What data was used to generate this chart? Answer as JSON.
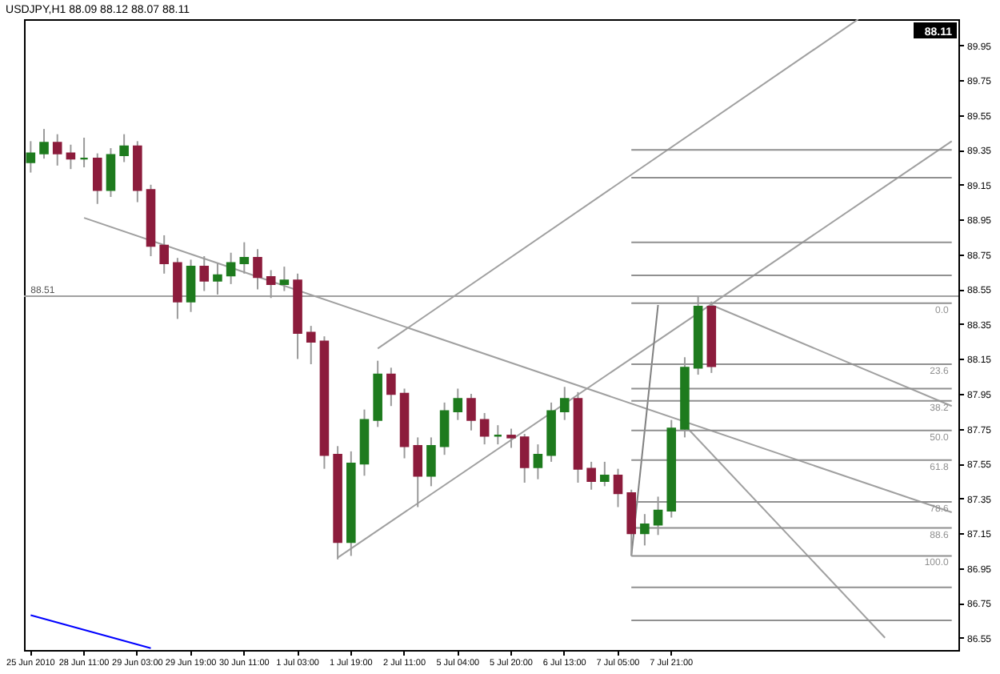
{
  "chart_data": {
    "type": "candlestick",
    "title": "USDJPY,H1  88.09 88.12 88.07 88.11",
    "categories": [
      "25 Jun 2010",
      null,
      null,
      null,
      "28 Jun 11:00",
      null,
      null,
      null,
      "29 Jun 03:00",
      null,
      null,
      null,
      "29 Jun 19:00",
      null,
      null,
      null,
      "30 Jun 11:00",
      null,
      null,
      null,
      "1 Jul 03:00",
      null,
      null,
      null,
      "1 Jul 19:00",
      null,
      null,
      null,
      "2 Jul 11:00",
      null,
      null,
      null,
      "5 Jul 04:00",
      null,
      null,
      null,
      "5 Jul 20:00",
      null,
      null,
      null,
      "6 Jul 13:00",
      null,
      null,
      null,
      "7 Jul 05:00",
      null,
      null,
      null,
      "7 Jul 21:00",
      null,
      null,
      null,
      null,
      null,
      null,
      null,
      null,
      null,
      null,
      null,
      null,
      null,
      null,
      null,
      null,
      null,
      null,
      null,
      null,
      null
    ],
    "ohlc": [
      [
        89.28,
        89.4,
        89.22,
        89.33
      ],
      [
        89.33,
        89.47,
        89.3,
        89.39
      ],
      [
        89.39,
        89.44,
        89.26,
        89.33
      ],
      [
        89.33,
        89.38,
        89.24,
        89.3
      ],
      [
        89.3,
        89.42,
        89.25,
        89.3
      ],
      [
        89.3,
        89.33,
        89.04,
        89.12
      ],
      [
        89.12,
        89.36,
        89.08,
        89.32
      ],
      [
        89.32,
        89.44,
        89.28,
        89.37
      ],
      [
        89.37,
        89.4,
        89.05,
        89.12
      ],
      [
        89.12,
        89.15,
        88.74,
        88.8
      ],
      [
        88.8,
        88.86,
        88.64,
        88.7
      ],
      [
        88.7,
        88.73,
        88.38,
        88.48
      ],
      [
        88.48,
        88.72,
        88.42,
        88.68
      ],
      [
        88.68,
        88.74,
        88.54,
        88.6
      ],
      [
        88.6,
        88.7,
        88.52,
        88.63
      ],
      [
        88.63,
        88.76,
        88.58,
        88.7
      ],
      [
        88.7,
        88.82,
        88.64,
        88.73
      ],
      [
        88.73,
        88.78,
        88.55,
        88.62
      ],
      [
        88.62,
        88.66,
        88.5,
        88.58
      ],
      [
        88.58,
        88.68,
        88.54,
        88.6
      ],
      [
        88.6,
        88.64,
        88.15,
        88.3
      ],
      [
        88.3,
        88.34,
        88.12,
        88.25
      ],
      [
        88.25,
        88.28,
        87.52,
        87.6
      ],
      [
        87.6,
        87.65,
        87.0,
        87.1
      ],
      [
        87.1,
        87.62,
        87.02,
        87.55
      ],
      [
        87.55,
        87.86,
        87.48,
        87.8
      ],
      [
        87.8,
        88.14,
        87.76,
        88.06
      ],
      [
        88.06,
        88.1,
        87.88,
        87.95
      ],
      [
        87.95,
        87.98,
        87.58,
        87.65
      ],
      [
        87.65,
        87.7,
        87.3,
        87.48
      ],
      [
        87.48,
        87.7,
        87.42,
        87.65
      ],
      [
        87.65,
        87.9,
        87.6,
        87.85
      ],
      [
        87.85,
        87.98,
        87.8,
        87.92
      ],
      [
        87.92,
        87.95,
        87.74,
        87.8
      ],
      [
        87.8,
        87.84,
        87.66,
        87.71
      ],
      [
        87.71,
        87.77,
        87.66,
        87.71
      ],
      [
        87.71,
        87.75,
        87.64,
        87.7
      ],
      [
        87.7,
        87.72,
        87.44,
        87.53
      ],
      [
        87.53,
        87.66,
        87.46,
        87.6
      ],
      [
        87.6,
        87.9,
        87.56,
        87.85
      ],
      [
        87.85,
        87.99,
        87.8,
        87.92
      ],
      [
        87.92,
        87.96,
        87.44,
        87.52
      ],
      [
        87.52,
        87.56,
        87.4,
        87.45
      ],
      [
        87.45,
        87.56,
        87.42,
        87.48
      ],
      [
        87.48,
        87.52,
        87.3,
        87.38
      ],
      [
        87.38,
        87.4,
        87.02,
        87.15
      ],
      [
        87.15,
        87.26,
        87.08,
        87.2
      ],
      [
        87.2,
        87.36,
        87.14,
        87.28
      ],
      [
        87.28,
        87.8,
        87.24,
        87.75
      ],
      [
        87.75,
        88.16,
        87.7,
        88.1
      ],
      [
        88.1,
        88.51,
        88.06,
        88.45
      ],
      [
        88.45,
        88.48,
        88.07,
        88.11
      ],
      null,
      null,
      null,
      null,
      null,
      null,
      null,
      null,
      null,
      null,
      null,
      null,
      null,
      null,
      null,
      null,
      null,
      null
    ],
    "ylim": [
      86.48,
      90.1
    ],
    "yticks": [
      86.55,
      86.75,
      86.95,
      87.15,
      87.35,
      87.55,
      87.75,
      87.95,
      88.15,
      88.35,
      88.55,
      88.75,
      88.95,
      89.15,
      89.35,
      89.55,
      89.75,
      89.95
    ],
    "series": [
      {
        "type": "line",
        "color": "#0000ff",
        "values": [
          86.68,
          null,
          null,
          null,
          null,
          null,
          null,
          null,
          null,
          86.49,
          null,
          null,
          null,
          null,
          null,
          null,
          null,
          null,
          null,
          null,
          null,
          null,
          null,
          null,
          null,
          null,
          null,
          null,
          null,
          null,
          null,
          null,
          null,
          null,
          null,
          null,
          null,
          null,
          null,
          null,
          null,
          null,
          null,
          null,
          null,
          null,
          null,
          null,
          null,
          null,
          null,
          null,
          null,
          null,
          null,
          null,
          null,
          null,
          null,
          null,
          null,
          null,
          null,
          null,
          null,
          null,
          null,
          null,
          null,
          null
        ]
      },
      {
        "type": "line",
        "color": "#a0a0a0",
        "values": [
          null,
          null,
          null,
          null,
          88.96,
          null,
          null,
          null,
          null,
          null,
          null,
          null,
          null,
          null,
          null,
          null,
          null,
          null,
          null,
          null,
          null,
          null,
          null,
          null,
          null,
          null,
          null,
          null,
          null,
          null,
          null,
          null,
          null,
          null,
          null,
          null,
          null,
          null,
          null,
          null,
          null,
          null,
          null,
          null,
          null,
          null,
          null,
          null,
          null,
          null,
          null,
          null,
          null,
          null,
          null,
          null,
          null,
          null,
          null,
          null,
          null,
          null,
          null,
          null,
          null,
          null,
          null,
          null,
          null,
          87.27
        ]
      },
      {
        "type": "line",
        "color": "#a0a0a0",
        "values": [
          null,
          null,
          null,
          null,
          null,
          null,
          null,
          null,
          null,
          null,
          null,
          null,
          null,
          null,
          null,
          null,
          null,
          null,
          null,
          null,
          null,
          null,
          null,
          null,
          null,
          null,
          null,
          null,
          null,
          null,
          null,
          null,
          null,
          null,
          null,
          null,
          null,
          null,
          null,
          null,
          null,
          null,
          null,
          null,
          null,
          null,
          null,
          null,
          null,
          null,
          null,
          88.46,
          null,
          null,
          null,
          null,
          null,
          null,
          null,
          null,
          null,
          null,
          null,
          null,
          null,
          null,
          null,
          null,
          null,
          87.88
        ]
      },
      {
        "type": "line",
        "color": "#a0a0a0",
        "values": [
          null,
          null,
          null,
          null,
          null,
          null,
          null,
          null,
          null,
          null,
          null,
          null,
          null,
          null,
          null,
          null,
          null,
          null,
          null,
          null,
          null,
          null,
          null,
          null,
          null,
          null,
          null,
          null,
          null,
          null,
          null,
          null,
          null,
          null,
          null,
          null,
          null,
          null,
          null,
          null,
          null,
          null,
          null,
          null,
          null,
          null,
          null,
          null,
          null,
          87.77,
          null,
          null,
          null,
          null,
          null,
          null,
          null,
          null,
          null,
          null,
          null,
          null,
          null,
          null,
          86.55,
          null,
          null,
          null,
          null,
          null
        ]
      },
      {
        "type": "line",
        "color": "#a0a0a0",
        "values": [
          null,
          null,
          null,
          null,
          null,
          null,
          null,
          null,
          null,
          null,
          null,
          null,
          null,
          null,
          null,
          null,
          null,
          null,
          null,
          null,
          null,
          null,
          null,
          87.01,
          null,
          null,
          null,
          null,
          null,
          null,
          null,
          null,
          null,
          null,
          null,
          null,
          null,
          null,
          null,
          null,
          null,
          null,
          null,
          null,
          null,
          null,
          null,
          null,
          null,
          null,
          null,
          null,
          null,
          null,
          null,
          null,
          null,
          null,
          null,
          null,
          null,
          null,
          null,
          null,
          null,
          null,
          null,
          null,
          null,
          89.4
        ]
      },
      {
        "type": "line",
        "color": "#a0a0a0",
        "values": [
          null,
          null,
          null,
          null,
          null,
          null,
          null,
          null,
          null,
          null,
          null,
          null,
          null,
          null,
          null,
          null,
          null,
          null,
          null,
          null,
          null,
          null,
          null,
          null,
          null,
          null,
          88.21,
          null,
          null,
          null,
          null,
          null,
          null,
          null,
          null,
          null,
          null,
          null,
          null,
          null,
          null,
          null,
          null,
          null,
          null,
          null,
          null,
          null,
          null,
          null,
          null,
          null,
          null,
          null,
          null,
          null,
          null,
          null,
          null,
          null,
          null,
          null,
          90.1,
          null,
          null,
          null,
          null,
          null,
          null,
          null
        ]
      },
      {
        "type": "line",
        "color": "#808080",
        "values": [
          null,
          null,
          null,
          null,
          null,
          null,
          null,
          null,
          null,
          null,
          null,
          null,
          null,
          null,
          null,
          null,
          null,
          null,
          null,
          null,
          null,
          null,
          null,
          null,
          null,
          null,
          null,
          null,
          null,
          null,
          null,
          null,
          null,
          null,
          null,
          null,
          null,
          null,
          null,
          null,
          null,
          null,
          null,
          null,
          null,
          87.02,
          null,
          88.46,
          null,
          null,
          null,
          null,
          null,
          null,
          null,
          null,
          null,
          null,
          null,
          null,
          null,
          null,
          null,
          null,
          null,
          null,
          null,
          null,
          null,
          null
        ]
      },
      {
        "type": "line",
        "color": "#909090",
        "name": "0.0",
        "values": [
          null,
          null,
          null,
          null,
          null,
          null,
          null,
          null,
          null,
          null,
          null,
          null,
          null,
          null,
          null,
          null,
          null,
          null,
          null,
          null,
          null,
          null,
          null,
          null,
          null,
          null,
          null,
          null,
          null,
          null,
          null,
          null,
          null,
          null,
          null,
          null,
          null,
          null,
          null,
          null,
          null,
          null,
          null,
          null,
          null,
          88.47,
          null,
          null,
          null,
          null,
          null,
          null,
          null,
          null,
          null,
          null,
          null,
          null,
          null,
          null,
          null,
          null,
          null,
          null,
          null,
          null,
          null,
          null,
          null,
          88.47
        ]
      },
      {
        "type": "line",
        "color": "#909090",
        "name": "23.6",
        "values": [
          null,
          null,
          null,
          null,
          null,
          null,
          null,
          null,
          null,
          null,
          null,
          null,
          null,
          null,
          null,
          null,
          null,
          null,
          null,
          null,
          null,
          null,
          null,
          null,
          null,
          null,
          null,
          null,
          null,
          null,
          null,
          null,
          null,
          null,
          null,
          null,
          null,
          null,
          null,
          null,
          null,
          null,
          null,
          null,
          null,
          88.12,
          null,
          null,
          null,
          null,
          null,
          null,
          null,
          null,
          null,
          null,
          null,
          null,
          null,
          null,
          null,
          null,
          null,
          null,
          null,
          null,
          null,
          null,
          null,
          88.12
        ]
      },
      {
        "type": "line",
        "color": "#909090",
        "name": "38.2",
        "values": [
          null,
          null,
          null,
          null,
          null,
          null,
          null,
          null,
          null,
          null,
          null,
          null,
          null,
          null,
          null,
          null,
          null,
          null,
          null,
          null,
          null,
          null,
          null,
          null,
          null,
          null,
          null,
          null,
          null,
          null,
          null,
          null,
          null,
          null,
          null,
          null,
          null,
          null,
          null,
          null,
          null,
          null,
          null,
          null,
          null,
          87.91,
          null,
          null,
          null,
          null,
          null,
          null,
          null,
          null,
          null,
          null,
          null,
          null,
          null,
          null,
          null,
          null,
          null,
          null,
          null,
          null,
          null,
          null,
          null,
          87.91
        ]
      },
      {
        "type": "line",
        "color": "#909090",
        "name": "50.0",
        "values": [
          null,
          null,
          null,
          null,
          null,
          null,
          null,
          null,
          null,
          null,
          null,
          null,
          null,
          null,
          null,
          null,
          null,
          null,
          null,
          null,
          null,
          null,
          null,
          null,
          null,
          null,
          null,
          null,
          null,
          null,
          null,
          null,
          null,
          null,
          null,
          null,
          null,
          null,
          null,
          null,
          null,
          null,
          null,
          null,
          null,
          87.74,
          null,
          null,
          null,
          null,
          null,
          null,
          null,
          null,
          null,
          null,
          null,
          null,
          null,
          null,
          null,
          null,
          null,
          null,
          null,
          null,
          null,
          null,
          null,
          87.74
        ]
      },
      {
        "type": "line",
        "color": "#909090",
        "name": "61.8",
        "values": [
          null,
          null,
          null,
          null,
          null,
          null,
          null,
          null,
          null,
          null,
          null,
          null,
          null,
          null,
          null,
          null,
          null,
          null,
          null,
          null,
          null,
          null,
          null,
          null,
          null,
          null,
          null,
          null,
          null,
          null,
          null,
          null,
          null,
          null,
          null,
          null,
          null,
          null,
          null,
          null,
          null,
          null,
          null,
          null,
          null,
          87.57,
          null,
          null,
          null,
          null,
          null,
          null,
          null,
          null,
          null,
          null,
          null,
          null,
          null,
          null,
          null,
          null,
          null,
          null,
          null,
          null,
          null,
          null,
          null,
          87.57
        ]
      },
      {
        "type": "line",
        "color": "#909090",
        "name": "78.6",
        "values": [
          null,
          null,
          null,
          null,
          null,
          null,
          null,
          null,
          null,
          null,
          null,
          null,
          null,
          null,
          null,
          null,
          null,
          null,
          null,
          null,
          null,
          null,
          null,
          null,
          null,
          null,
          null,
          null,
          null,
          null,
          null,
          null,
          null,
          null,
          null,
          null,
          null,
          null,
          null,
          null,
          null,
          null,
          null,
          null,
          null,
          87.33,
          null,
          null,
          null,
          null,
          null,
          null,
          null,
          null,
          null,
          null,
          null,
          null,
          null,
          null,
          null,
          null,
          null,
          null,
          null,
          null,
          null,
          null,
          null,
          87.33
        ]
      },
      {
        "type": "line",
        "color": "#909090",
        "name": "88.6",
        "values": [
          null,
          null,
          null,
          null,
          null,
          null,
          null,
          null,
          null,
          null,
          null,
          null,
          null,
          null,
          null,
          null,
          null,
          null,
          null,
          null,
          null,
          null,
          null,
          null,
          null,
          null,
          null,
          null,
          null,
          null,
          null,
          null,
          null,
          null,
          null,
          null,
          null,
          null,
          null,
          null,
          null,
          null,
          null,
          null,
          null,
          87.18,
          null,
          null,
          null,
          null,
          null,
          null,
          null,
          null,
          null,
          null,
          null,
          null,
          null,
          null,
          null,
          null,
          null,
          null,
          null,
          null,
          null,
          null,
          null,
          87.18
        ]
      },
      {
        "type": "line",
        "color": "#909090",
        "name": "100.0",
        "values": [
          null,
          null,
          null,
          null,
          null,
          null,
          null,
          null,
          null,
          null,
          null,
          null,
          null,
          null,
          null,
          null,
          null,
          null,
          null,
          null,
          null,
          null,
          null,
          null,
          null,
          null,
          null,
          null,
          null,
          null,
          null,
          null,
          null,
          null,
          null,
          null,
          null,
          null,
          null,
          null,
          null,
          null,
          null,
          null,
          null,
          87.02,
          null,
          null,
          null,
          null,
          null,
          null,
          null,
          null,
          null,
          null,
          null,
          null,
          null,
          null,
          null,
          null,
          null,
          null,
          null,
          null,
          null,
          null,
          null,
          87.02
        ]
      },
      {
        "type": "line",
        "color": "#909090",
        "values": [
          null,
          null,
          null,
          null,
          null,
          null,
          null,
          null,
          null,
          null,
          null,
          null,
          null,
          null,
          null,
          null,
          null,
          null,
          null,
          null,
          null,
          null,
          null,
          null,
          null,
          null,
          null,
          null,
          null,
          null,
          null,
          null,
          null,
          null,
          null,
          null,
          null,
          null,
          null,
          null,
          null,
          null,
          null,
          null,
          null,
          89.35,
          null,
          null,
          null,
          null,
          null,
          null,
          null,
          null,
          null,
          null,
          null,
          null,
          null,
          null,
          null,
          null,
          null,
          null,
          null,
          null,
          null,
          null,
          null,
          89.35
        ]
      },
      {
        "type": "line",
        "color": "#909090",
        "values": [
          null,
          null,
          null,
          null,
          null,
          null,
          null,
          null,
          null,
          null,
          null,
          null,
          null,
          null,
          null,
          null,
          null,
          null,
          null,
          null,
          null,
          null,
          null,
          null,
          null,
          null,
          null,
          null,
          null,
          null,
          null,
          null,
          null,
          null,
          null,
          null,
          null,
          null,
          null,
          null,
          null,
          null,
          null,
          null,
          null,
          89.19,
          null,
          null,
          null,
          null,
          null,
          null,
          null,
          null,
          null,
          null,
          null,
          null,
          null,
          null,
          null,
          null,
          null,
          null,
          null,
          null,
          null,
          null,
          null,
          89.19
        ]
      },
      {
        "type": "line",
        "color": "#909090",
        "values": [
          null,
          null,
          null,
          null,
          null,
          null,
          null,
          null,
          null,
          null,
          null,
          null,
          null,
          null,
          null,
          null,
          null,
          null,
          null,
          null,
          null,
          null,
          null,
          null,
          null,
          null,
          null,
          null,
          null,
          null,
          null,
          null,
          null,
          null,
          null,
          null,
          null,
          null,
          null,
          null,
          null,
          null,
          null,
          null,
          null,
          88.82,
          null,
          null,
          null,
          null,
          null,
          null,
          null,
          null,
          null,
          null,
          null,
          null,
          null,
          null,
          null,
          null,
          null,
          null,
          null,
          null,
          null,
          null,
          null,
          88.82
        ]
      },
      {
        "type": "line",
        "color": "#909090",
        "values": [
          null,
          null,
          null,
          null,
          null,
          null,
          null,
          null,
          null,
          null,
          null,
          null,
          null,
          null,
          null,
          null,
          null,
          null,
          null,
          null,
          null,
          null,
          null,
          null,
          null,
          null,
          null,
          null,
          null,
          null,
          null,
          null,
          null,
          null,
          null,
          null,
          null,
          null,
          null,
          null,
          null,
          null,
          null,
          null,
          null,
          88.63,
          null,
          null,
          null,
          null,
          null,
          null,
          null,
          null,
          null,
          null,
          null,
          null,
          null,
          null,
          null,
          null,
          null,
          null,
          null,
          null,
          null,
          null,
          null,
          88.63
        ]
      },
      {
        "type": "line",
        "color": "#909090",
        "values": [
          null,
          null,
          null,
          null,
          null,
          null,
          null,
          null,
          null,
          null,
          null,
          null,
          null,
          null,
          null,
          null,
          null,
          null,
          null,
          null,
          null,
          null,
          null,
          null,
          null,
          null,
          null,
          null,
          null,
          null,
          null,
          null,
          null,
          null,
          null,
          null,
          null,
          null,
          null,
          null,
          null,
          null,
          null,
          null,
          null,
          87.98,
          null,
          null,
          null,
          null,
          null,
          null,
          null,
          null,
          null,
          null,
          null,
          null,
          null,
          null,
          null,
          null,
          null,
          null,
          null,
          null,
          null,
          null,
          null,
          87.98
        ]
      },
      {
        "type": "line",
        "color": "#909090",
        "values": [
          null,
          null,
          null,
          null,
          null,
          null,
          null,
          null,
          null,
          null,
          null,
          null,
          null,
          null,
          null,
          null,
          null,
          null,
          null,
          null,
          null,
          null,
          null,
          null,
          null,
          null,
          null,
          null,
          null,
          null,
          null,
          null,
          null,
          null,
          null,
          null,
          null,
          null,
          null,
          null,
          null,
          null,
          null,
          null,
          null,
          86.84,
          null,
          null,
          null,
          null,
          null,
          null,
          null,
          null,
          null,
          null,
          null,
          null,
          null,
          null,
          null,
          null,
          null,
          null,
          null,
          null,
          null,
          null,
          null,
          86.84
        ]
      },
      {
        "type": "line",
        "color": "#909090",
        "values": [
          null,
          null,
          null,
          null,
          null,
          null,
          null,
          null,
          null,
          null,
          null,
          null,
          null,
          null,
          null,
          null,
          null,
          null,
          null,
          null,
          null,
          null,
          null,
          null,
          null,
          null,
          null,
          null,
          null,
          null,
          null,
          null,
          null,
          null,
          null,
          null,
          null,
          null,
          null,
          null,
          null,
          null,
          null,
          null,
          null,
          86.65,
          null,
          null,
          null,
          null,
          null,
          null,
          null,
          null,
          null,
          null,
          null,
          null,
          null,
          null,
          null,
          null,
          null,
          null,
          null,
          null,
          null,
          null,
          null,
          86.65
        ]
      }
    ],
    "ref_lines": [
      {
        "axis": "y",
        "value": 88.51,
        "label": "88.51",
        "color": "#a0a0a0"
      }
    ],
    "annotations": [
      "88.11"
    ],
    "grid": false
  }
}
